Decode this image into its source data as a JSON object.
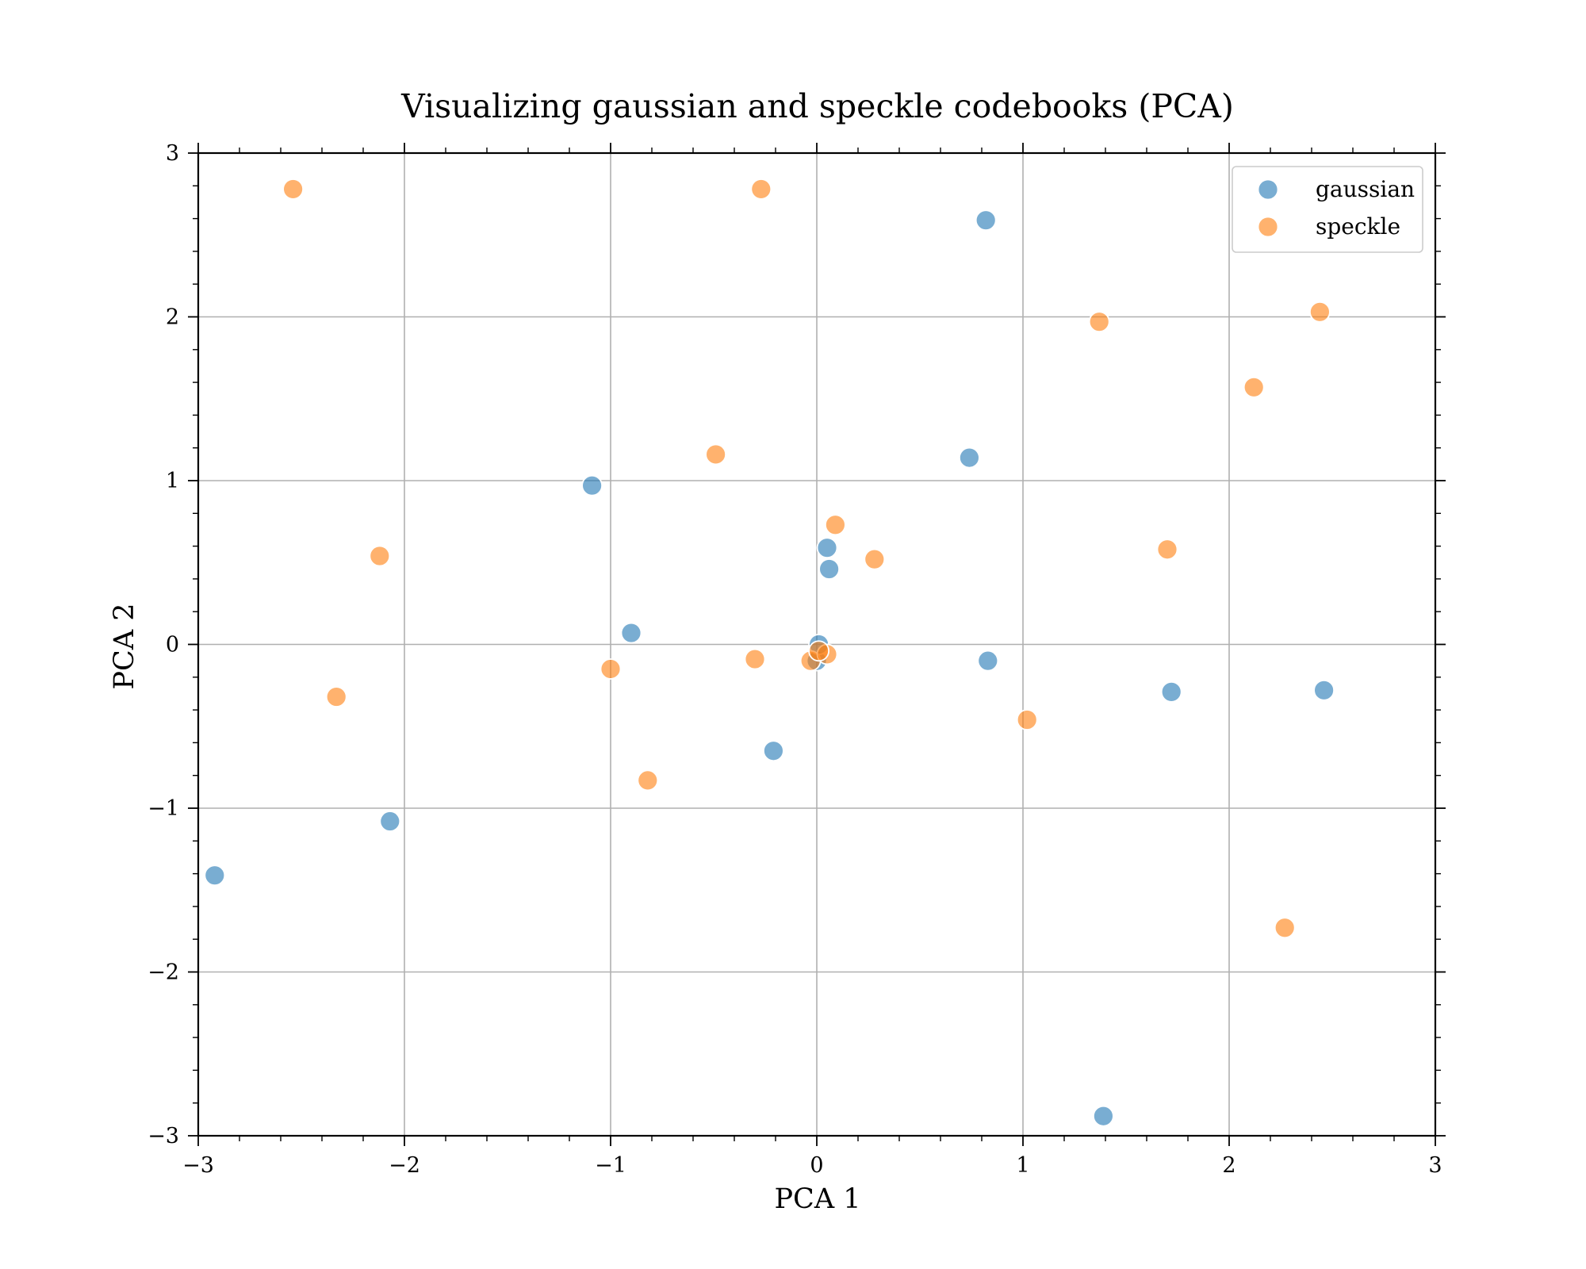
{
  "chart_data": {
    "type": "scatter",
    "title": "Visualizing gaussian and speckle codebooks (PCA)",
    "xlabel": "PCA 1",
    "ylabel": "PCA 2",
    "xlim": [
      -3,
      3
    ],
    "ylim": [
      -3,
      3
    ],
    "grid": true,
    "legend_position": "top-right",
    "x_ticks": [
      {
        "value": -3,
        "label": "−3"
      },
      {
        "value": -2,
        "label": "−2"
      },
      {
        "value": -1,
        "label": "−1"
      },
      {
        "value": 0,
        "label": "0"
      },
      {
        "value": 1,
        "label": "1"
      },
      {
        "value": 2,
        "label": "2"
      },
      {
        "value": 3,
        "label": "3"
      }
    ],
    "y_ticks": [
      {
        "value": -3,
        "label": "−3"
      },
      {
        "value": -2,
        "label": "−2"
      },
      {
        "value": -1,
        "label": "−1"
      },
      {
        "value": 0,
        "label": "0"
      },
      {
        "value": 1,
        "label": "1"
      },
      {
        "value": 2,
        "label": "2"
      },
      {
        "value": 3,
        "label": "3"
      }
    ],
    "series": [
      {
        "name": "gaussian",
        "color": "#1f77b4",
        "points": [
          [
            -2.92,
            -1.41
          ],
          [
            -2.07,
            -1.08
          ],
          [
            -1.09,
            0.97
          ],
          [
            -0.9,
            0.07
          ],
          [
            -0.21,
            -0.65
          ],
          [
            0.0,
            -0.1
          ],
          [
            0.05,
            0.59
          ],
          [
            0.06,
            0.46
          ],
          [
            0.74,
            1.14
          ],
          [
            0.82,
            2.59
          ],
          [
            0.83,
            -0.1
          ],
          [
            1.39,
            -2.88
          ],
          [
            1.72,
            -0.29
          ],
          [
            2.46,
            -0.28
          ],
          [
            0.01,
            0.0
          ]
        ]
      },
      {
        "name": "speckle",
        "color": "#ff7f0e",
        "points": [
          [
            -2.54,
            2.78
          ],
          [
            -2.33,
            -0.32
          ],
          [
            -2.12,
            0.54
          ],
          [
            -1.0,
            -0.15
          ],
          [
            -0.82,
            -0.83
          ],
          [
            -0.49,
            1.16
          ],
          [
            -0.3,
            -0.09
          ],
          [
            -0.27,
            2.78
          ],
          [
            -0.03,
            -0.1
          ],
          [
            0.05,
            -0.06
          ],
          [
            0.09,
            0.73
          ],
          [
            0.28,
            0.52
          ],
          [
            1.02,
            -0.46
          ],
          [
            1.37,
            1.97
          ],
          [
            1.7,
            0.58
          ],
          [
            2.12,
            1.57
          ],
          [
            2.27,
            -1.73
          ],
          [
            2.44,
            2.03
          ],
          [
            0.01,
            -0.04
          ]
        ]
      }
    ]
  }
}
